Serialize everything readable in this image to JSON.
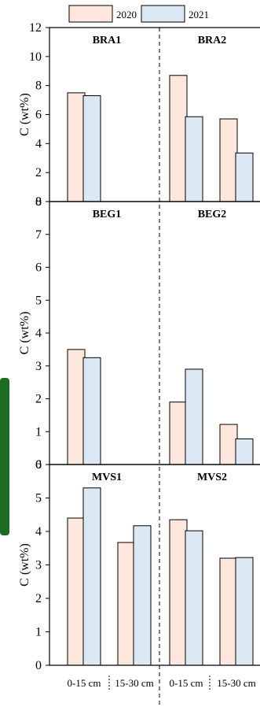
{
  "legend": [
    {
      "label": "2020",
      "color": "#fde6dc"
    },
    {
      "label": "2021",
      "color": "#dce8f4"
    }
  ],
  "colors": {
    "y2020": "#fde6dc",
    "y2021": "#dce8f4",
    "accent_bar": "#1b6e21",
    "edge": "#000000"
  },
  "chart_data": [
    {
      "type": "bar",
      "ylabel": "C (wt%)",
      "ylim": [
        0,
        12
      ],
      "yticks": [
        0,
        2,
        4,
        6,
        8,
        10,
        12
      ],
      "groups": [
        {
          "name": "BRA1",
          "categories": [
            "0-15 cm",
            "15-30 cm"
          ],
          "series": [
            {
              "name": "2020",
              "values": [
                7.5,
                null
              ]
            },
            {
              "name": "2021",
              "values": [
                7.3,
                null
              ]
            }
          ]
        },
        {
          "name": "BRA2",
          "categories": [
            "0-15 cm",
            "15-30 cm"
          ],
          "series": [
            {
              "name": "2020",
              "values": [
                8.7,
                5.7
              ]
            },
            {
              "name": "2021",
              "values": [
                5.85,
                3.35
              ]
            }
          ]
        }
      ]
    },
    {
      "type": "bar",
      "ylabel": "C (wt%)",
      "ylim": [
        0,
        8
      ],
      "yticks": [
        0,
        1,
        2,
        3,
        4,
        5,
        6,
        7,
        8
      ],
      "groups": [
        {
          "name": "BEG1",
          "categories": [
            "0-15 cm",
            "15-30 cm"
          ],
          "series": [
            {
              "name": "2020",
              "values": [
                3.5,
                null
              ]
            },
            {
              "name": "2021",
              "values": [
                3.25,
                null
              ]
            }
          ]
        },
        {
          "name": "BEG2",
          "categories": [
            "0-15 cm",
            "15-30 cm"
          ],
          "series": [
            {
              "name": "2020",
              "values": [
                1.9,
                1.22
              ]
            },
            {
              "name": "2021",
              "values": [
                2.9,
                0.78
              ]
            }
          ]
        }
      ]
    },
    {
      "type": "bar",
      "ylabel": "C (wt%)",
      "ylim": [
        0,
        6
      ],
      "yticks": [
        0,
        1,
        2,
        3,
        4,
        5,
        6
      ],
      "groups": [
        {
          "name": "MVS1",
          "categories": [
            "0-15 cm",
            "15-30 cm"
          ],
          "series": [
            {
              "name": "2020",
              "values": [
                4.4,
                3.67
              ]
            },
            {
              "name": "2021",
              "values": [
                5.3,
                4.17
              ]
            }
          ]
        },
        {
          "name": "MVS2",
          "categories": [
            "0-15 cm",
            "15-30 cm"
          ],
          "series": [
            {
              "name": "2020",
              "values": [
                4.35,
                3.2
              ]
            },
            {
              "name": "2021",
              "values": [
                4.02,
                3.22
              ]
            }
          ]
        }
      ]
    }
  ]
}
